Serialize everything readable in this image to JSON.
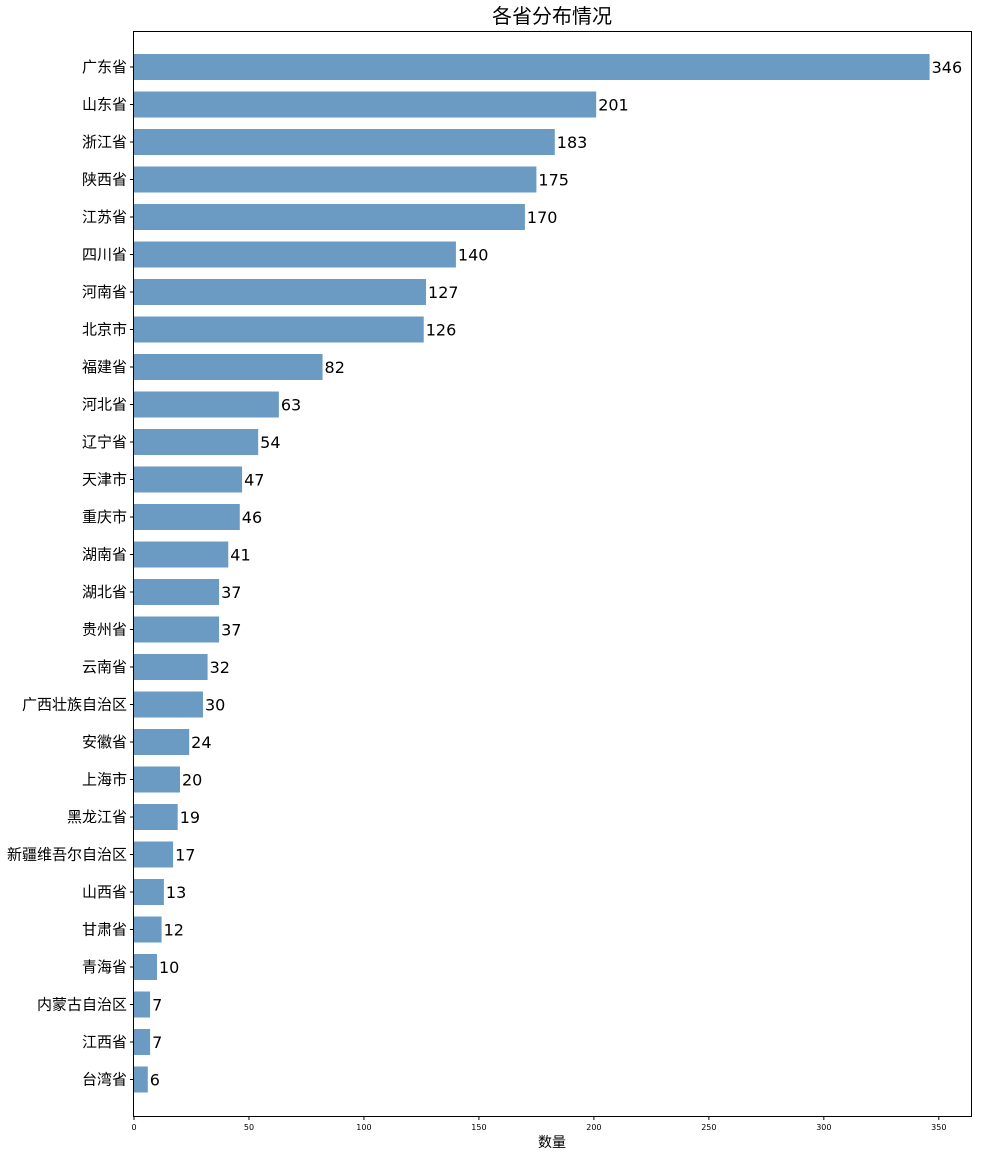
{
  "chart_data": {
    "type": "bar",
    "orientation": "horizontal",
    "title": "各省分布情况",
    "xlabel": "数量",
    "ylabel": "",
    "xlim": [
      0,
      364
    ],
    "xticks": [
      0,
      50,
      100,
      150,
      200,
      250,
      300,
      350
    ],
    "bar_color": "#6b9bc3",
    "grid": false,
    "categories": [
      "广东省",
      "山东省",
      "浙江省",
      "陕西省",
      "江苏省",
      "四川省",
      "河南省",
      "北京市",
      "福建省",
      "河北省",
      "辽宁省",
      "天津市",
      "重庆市",
      "湖南省",
      "湖北省",
      "贵州省",
      "云南省",
      "广西壮族自治区",
      "安徽省",
      "上海市",
      "黑龙江省",
      "新疆维吾尔自治区",
      "山西省",
      "甘肃省",
      "青海省",
      "内蒙古自治区",
      "江西省",
      "台湾省"
    ],
    "values": [
      346,
      201,
      183,
      175,
      170,
      140,
      127,
      126,
      82,
      63,
      54,
      47,
      46,
      41,
      37,
      37,
      32,
      30,
      24,
      20,
      19,
      17,
      13,
      12,
      10,
      7,
      7,
      6
    ]
  }
}
